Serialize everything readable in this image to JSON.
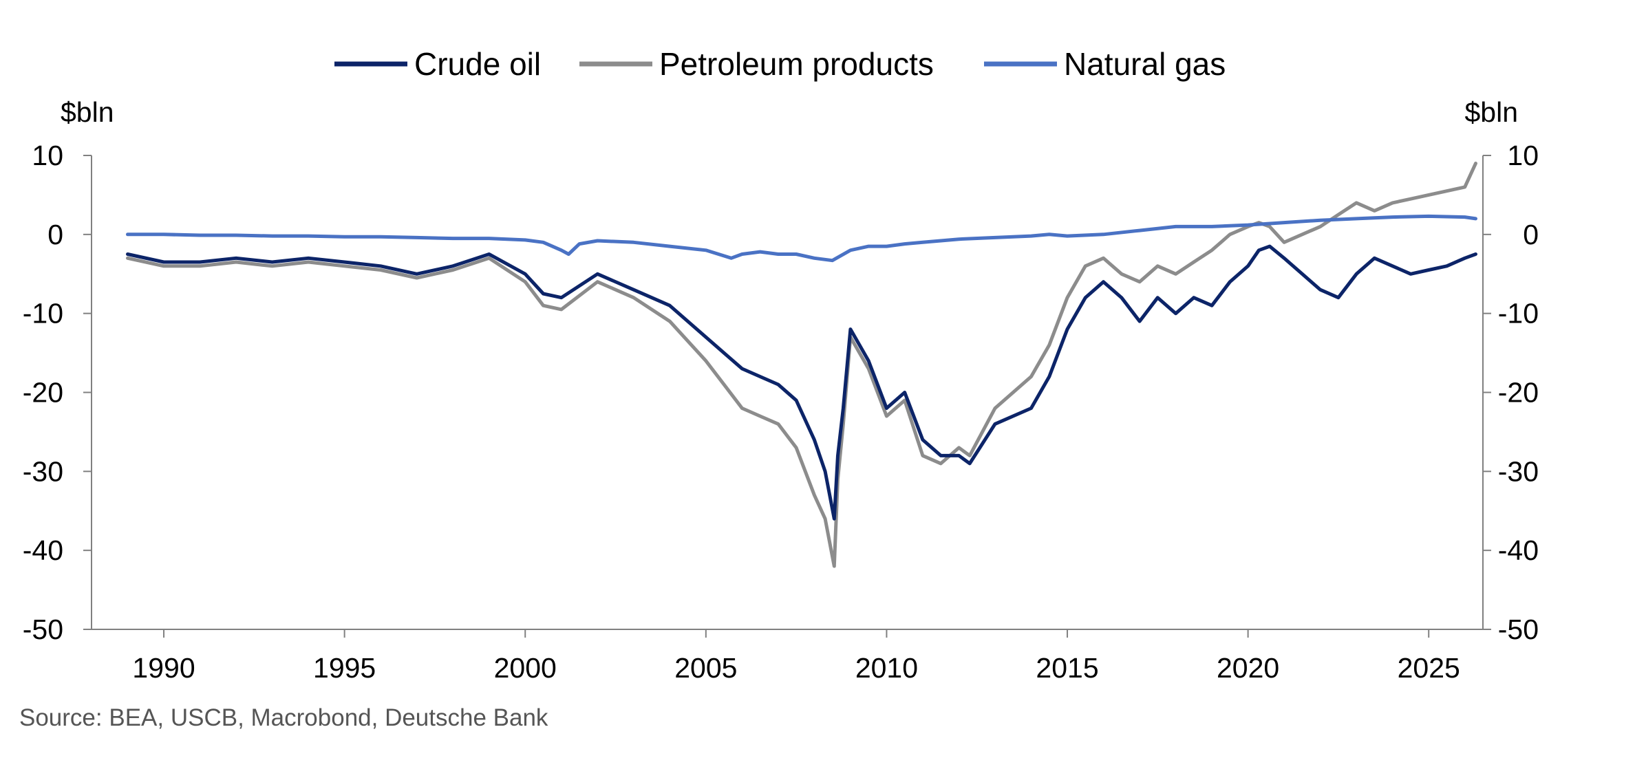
{
  "chart_data": {
    "type": "line",
    "title": "",
    "y_unit_left": "$bln",
    "y_unit_right": "$bln",
    "ylim": [
      -50,
      10
    ],
    "xlim": [
      1988.0,
      2026.5
    ],
    "yticks": [
      10,
      0,
      -10,
      -20,
      -30,
      -40,
      -50
    ],
    "xticks": [
      1990,
      1995,
      2000,
      2005,
      2010,
      2015,
      2020,
      2025
    ],
    "grid": false,
    "legend_position": "top-center",
    "source": "Source: BEA, USCB, Macrobond, Deutsche Bank",
    "series": [
      {
        "name": "Crude oil",
        "color": "#0c2468",
        "x": [
          1989.0,
          1990.0,
          1991.0,
          1992.0,
          1993.0,
          1994.0,
          1995.0,
          1996.0,
          1997.0,
          1998.0,
          1999.0,
          2000.0,
          2000.5,
          2001.0,
          2002.0,
          2003.0,
          2004.0,
          2005.0,
          2005.5,
          2006.0,
          2006.5,
          2007.0,
          2007.5,
          2008.0,
          2008.3,
          2008.55,
          2008.65,
          2008.8,
          2009.0,
          2009.5,
          2010.0,
          2010.5,
          2011.0,
          2011.5,
          2012.0,
          2012.3,
          2013.0,
          2014.0,
          2014.5,
          2015.0,
          2015.5,
          2016.0,
          2016.5,
          2017.0,
          2017.5,
          2018.0,
          2018.5,
          2019.0,
          2019.5,
          2020.0,
          2020.3,
          2020.6,
          2021.0,
          2021.5,
          2022.0,
          2022.5,
          2023.0,
          2023.5,
          2024.0,
          2024.5,
          2025.0,
          2025.5,
          2026.0,
          2026.3
        ],
        "values": [
          -2.5,
          -3.5,
          -3.5,
          -3.0,
          -3.5,
          -3.0,
          -3.5,
          -4.0,
          -5.0,
          -4.0,
          -2.5,
          -5.0,
          -7.5,
          -8.0,
          -5.0,
          -7.0,
          -9.0,
          -13.0,
          -15.0,
          -17.0,
          -18.0,
          -19.0,
          -21.0,
          -26.0,
          -30.0,
          -36.0,
          -28.0,
          -22.0,
          -12.0,
          -16.0,
          -22.0,
          -20.0,
          -26.0,
          -28.0,
          -28.0,
          -29.0,
          -24.0,
          -22.0,
          -18.0,
          -12.0,
          -8.0,
          -6.0,
          -8.0,
          -11.0,
          -8.0,
          -10.0,
          -8.0,
          -9.0,
          -6.0,
          -4.0,
          -2.0,
          -1.5,
          -3.0,
          -5.0,
          -7.0,
          -8.0,
          -5.0,
          -3.0,
          -4.0,
          -5.0,
          -4.5,
          -4.0,
          -3.0,
          -2.5
        ]
      },
      {
        "name": "Petroleum products",
        "color": "#8c8c8c",
        "x": [
          1989.0,
          1990.0,
          1991.0,
          1992.0,
          1993.0,
          1994.0,
          1995.0,
          1996.0,
          1997.0,
          1998.0,
          1999.0,
          2000.0,
          2000.5,
          2001.0,
          2002.0,
          2003.0,
          2004.0,
          2005.0,
          2005.5,
          2006.0,
          2006.5,
          2007.0,
          2007.5,
          2008.0,
          2008.3,
          2008.55,
          2008.65,
          2008.8,
          2009.0,
          2009.5,
          2010.0,
          2010.5,
          2011.0,
          2011.5,
          2012.0,
          2012.3,
          2013.0,
          2014.0,
          2014.5,
          2015.0,
          2015.5,
          2016.0,
          2016.5,
          2017.0,
          2017.5,
          2018.0,
          2018.5,
          2019.0,
          2019.5,
          2020.0,
          2020.3,
          2020.6,
          2021.0,
          2021.5,
          2022.0,
          2022.5,
          2023.0,
          2023.5,
          2024.0,
          2024.5,
          2025.0,
          2025.5,
          2026.0,
          2026.3
        ],
        "values": [
          -3.0,
          -4.0,
          -4.0,
          -3.5,
          -4.0,
          -3.5,
          -4.0,
          -4.5,
          -5.5,
          -4.5,
          -3.0,
          -6.0,
          -9.0,
          -9.5,
          -6.0,
          -8.0,
          -11.0,
          -16.0,
          -19.0,
          -22.0,
          -23.0,
          -24.0,
          -27.0,
          -33.0,
          -36.0,
          -42.0,
          -31.0,
          -24.0,
          -13.0,
          -17.0,
          -23.0,
          -21.0,
          -28.0,
          -29.0,
          -27.0,
          -28.0,
          -22.0,
          -18.0,
          -14.0,
          -8.0,
          -4.0,
          -3.0,
          -5.0,
          -6.0,
          -4.0,
          -5.0,
          -3.5,
          -2.0,
          0.0,
          1.0,
          1.5,
          1.0,
          -1.0,
          0.0,
          1.0,
          2.5,
          4.0,
          3.0,
          4.0,
          4.5,
          5.0,
          5.5,
          6.0,
          9.0
        ]
      },
      {
        "name": "Natural gas",
        "color": "#4a72c4",
        "x": [
          1989.0,
          1990.0,
          1991.0,
          1992.0,
          1993.0,
          1994.0,
          1995.0,
          1996.0,
          1997.0,
          1998.0,
          1999.0,
          2000.0,
          2000.5,
          2001.0,
          2001.2,
          2001.5,
          2002.0,
          2003.0,
          2004.0,
          2005.0,
          2005.7,
          2006.0,
          2006.5,
          2007.0,
          2007.5,
          2008.0,
          2008.5,
          2009.0,
          2009.5,
          2010.0,
          2010.5,
          2011.0,
          2012.0,
          2013.0,
          2014.0,
          2014.5,
          2015.0,
          2016.0,
          2017.0,
          2018.0,
          2019.0,
          2020.0,
          2021.0,
          2022.0,
          2023.0,
          2024.0,
          2025.0,
          2026.0,
          2026.3
        ],
        "values": [
          0.0,
          0.0,
          -0.1,
          -0.1,
          -0.2,
          -0.2,
          -0.3,
          -0.3,
          -0.4,
          -0.5,
          -0.5,
          -0.7,
          -1.0,
          -2.0,
          -2.5,
          -1.2,
          -0.8,
          -1.0,
          -1.5,
          -2.0,
          -3.0,
          -2.5,
          -2.2,
          -2.5,
          -2.5,
          -3.0,
          -3.3,
          -2.0,
          -1.5,
          -1.5,
          -1.2,
          -1.0,
          -0.6,
          -0.4,
          -0.2,
          0.0,
          -0.2,
          0.0,
          0.5,
          1.0,
          1.0,
          1.2,
          1.5,
          1.8,
          2.0,
          2.2,
          2.3,
          2.2,
          2.0
        ]
      }
    ]
  }
}
